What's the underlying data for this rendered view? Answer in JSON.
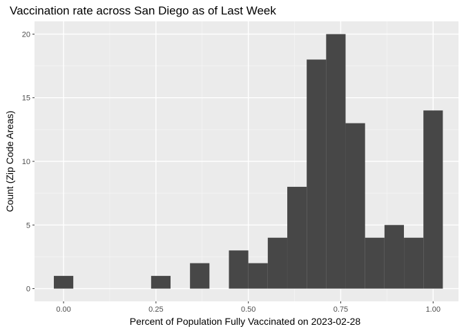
{
  "chart_data": {
    "type": "bar",
    "title": "Vaccination rate across San Diego as of Last Week",
    "xlabel": "Percent of Population Fully Vaccinated on 2023-02-28",
    "ylabel": "Count (Zip Code Areas)",
    "xlim": [
      -0.0786,
      1.0686
    ],
    "ylim": [
      -1,
      21
    ],
    "x_ticks": [
      0.0,
      0.25,
      0.5,
      0.75,
      1.0
    ],
    "x_tick_labels": [
      "0.00",
      "0.25",
      "0.50",
      "0.75",
      "1.00"
    ],
    "y_ticks": [
      0,
      5,
      10,
      15,
      20
    ],
    "y_tick_labels": [
      "0",
      "5",
      "10",
      "15",
      "20"
    ],
    "bin_width": 0.0526,
    "bins": [
      {
        "x": 0.0,
        "count": 1
      },
      {
        "x": 0.0526,
        "count": 0
      },
      {
        "x": 0.1053,
        "count": 0
      },
      {
        "x": 0.1579,
        "count": 0
      },
      {
        "x": 0.2105,
        "count": 0
      },
      {
        "x": 0.2632,
        "count": 1
      },
      {
        "x": 0.3158,
        "count": 0
      },
      {
        "x": 0.3684,
        "count": 2
      },
      {
        "x": 0.4211,
        "count": 0
      },
      {
        "x": 0.4737,
        "count": 3
      },
      {
        "x": 0.5263,
        "count": 2
      },
      {
        "x": 0.5789,
        "count": 4
      },
      {
        "x": 0.6316,
        "count": 8
      },
      {
        "x": 0.6842,
        "count": 18
      },
      {
        "x": 0.7368,
        "count": 20
      },
      {
        "x": 0.7895,
        "count": 13
      },
      {
        "x": 0.8421,
        "count": 4
      },
      {
        "x": 0.8947,
        "count": 5
      },
      {
        "x": 0.9474,
        "count": 4
      },
      {
        "x": 1.0,
        "count": 14
      }
    ],
    "grid": true,
    "colors": {
      "bar": "#474747",
      "panel": "#ebebeb",
      "grid_major": "#ffffff"
    }
  }
}
